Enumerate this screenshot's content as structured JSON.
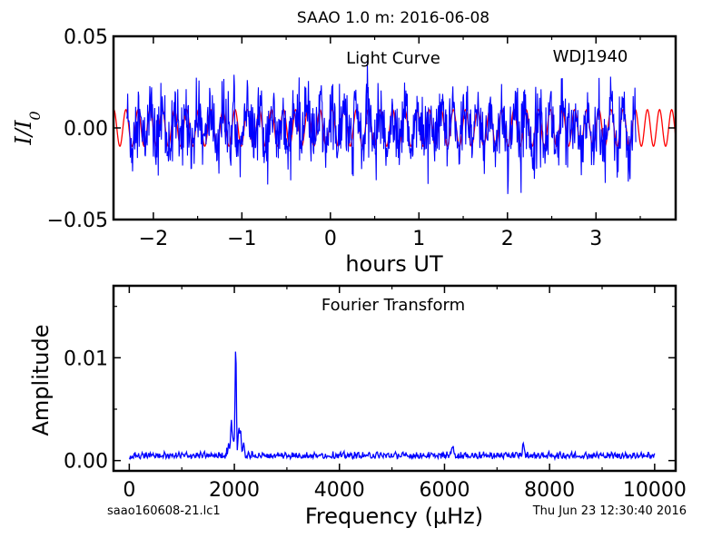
{
  "figure": {
    "title": "SAAO 1.0 m:  2016-06-08",
    "footer_left": "saao160608-21.lc1",
    "footer_right": "Thu Jun 23 12:30:40 2016"
  },
  "chart_data": [
    {
      "type": "line",
      "title": "Light Curve",
      "annotation": "WDJ1940",
      "xlabel": "hours UT",
      "ylabel": "I/I0",
      "xlim": [
        -2.45,
        3.9
      ],
      "ylim": [
        -0.05,
        0.05
      ],
      "xticks": [
        -2,
        -1,
        0,
        1,
        2,
        3
      ],
      "xtick_labels": [
        "−2",
        "−1",
        "0",
        "1",
        "2",
        "3"
      ],
      "yticks": [
        -0.05,
        0.0,
        0.05
      ],
      "ytick_labels": [
        "−0.05",
        "0.00",
        "0.05"
      ],
      "series": [
        {
          "kind": "data",
          "color": "#0000ff",
          "x_range": [
            -2.3,
            3.45
          ],
          "n_points": 1150,
          "amplitude_typical": 0.02,
          "peak_positive": 0.036,
          "peak_negative": -0.044
        },
        {
          "kind": "model-sinusoid",
          "color": "#ff0000",
          "amplitude": 0.01,
          "period_hours": 0.137,
          "x_range": [
            -2.45,
            3.9
          ]
        }
      ]
    },
    {
      "type": "line",
      "title": "Fourier Transform",
      "xlabel": "Frequency (μHz)",
      "ylabel": "Amplitude",
      "xlim": [
        -300,
        10400
      ],
      "ylim": [
        -0.001,
        0.017
      ],
      "xticks": [
        0,
        2000,
        4000,
        6000,
        8000,
        10000
      ],
      "xtick_labels": [
        "0",
        "2000",
        "4000",
        "6000",
        "8000",
        "10000"
      ],
      "yticks": [
        0.0,
        0.01
      ],
      "ytick_labels": [
        "0.00",
        "0.01"
      ],
      "series": [
        {
          "color": "#0000ff",
          "x_range": [
            0,
            10000
          ],
          "noise_level": 0.0005,
          "peaks": [
            {
              "x": 2025,
              "y": 0.0097
            },
            {
              "x": 1950,
              "y": 0.0025
            },
            {
              "x": 2100,
              "y": 0.0022
            },
            {
              "x": 6150,
              "y": 0.0012
            },
            {
              "x": 7500,
              "y": 0.0013
            }
          ]
        }
      ]
    }
  ]
}
